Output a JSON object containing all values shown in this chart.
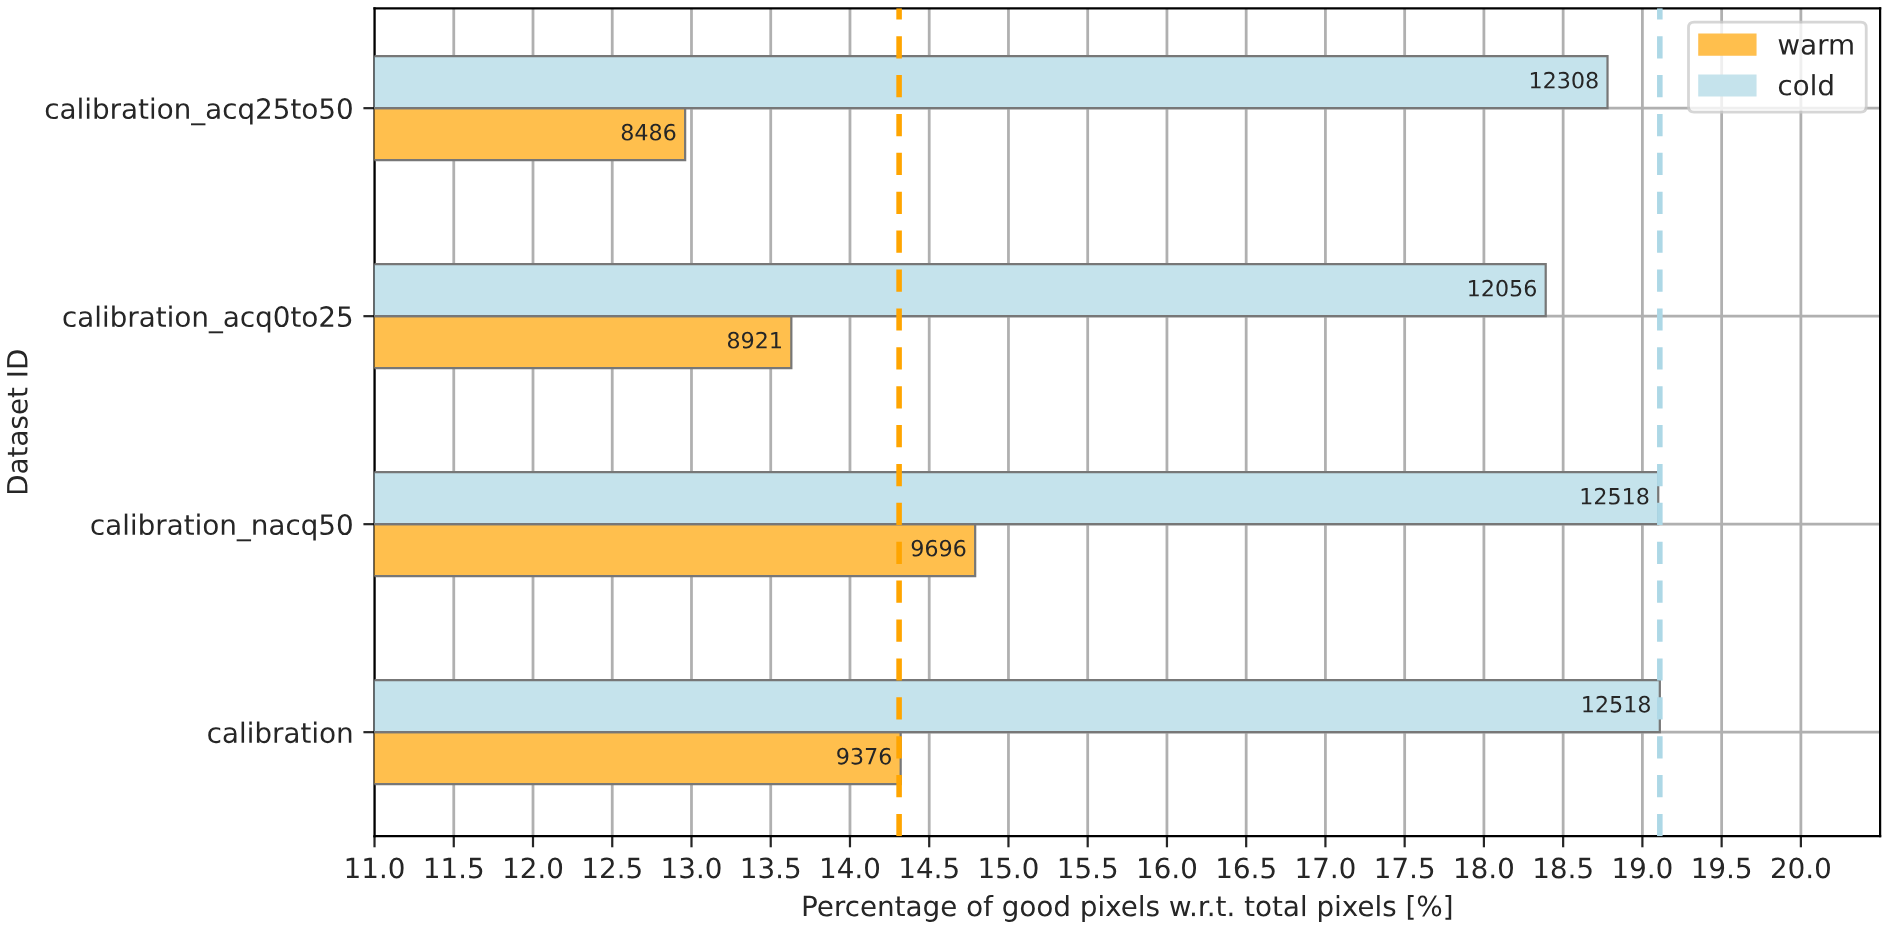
{
  "chart_data": {
    "type": "bar",
    "orientation": "horizontal",
    "xlabel": "Percentage of good pixels w.r.t. total pixels [%]",
    "ylabel": "Dataset ID",
    "categories": [
      "calibration_acq25to50",
      "calibration_acq0to25",
      "calibration_nacq50",
      "calibration"
    ],
    "series": [
      {
        "name": "warm",
        "color": "#ffbf4d",
        "values": [
          12.96,
          13.63,
          14.79,
          14.32
        ]
      },
      {
        "name": "cold",
        "color": "#c5e3ec",
        "values": [
          18.78,
          18.39,
          19.1,
          19.11
        ]
      }
    ],
    "annotations": [
      {
        "text": "8486",
        "x": 12.96,
        "y": "calibration_acq25to50"
      },
      {
        "text": "8921",
        "x": 13.63,
        "y": "calibration_acq0to25"
      },
      {
        "text": "9696",
        "x": 14.79,
        "y": "calibration_nacq50"
      },
      {
        "text": "9376",
        "x": 14.32,
        "y": "calibration"
      },
      {
        "text": "12308",
        "x": 18.78,
        "y": "calibration_acq25to50"
      },
      {
        "text": "12056",
        "x": 18.39,
        "y": "calibration_acq0to25"
      },
      {
        "text": "12518",
        "x": 19.1,
        "y": "calibration_nacq50"
      },
      {
        "text": "12518",
        "x": 19.11,
        "y": "calibration"
      }
    ],
    "xlim": [
      11.0,
      20.5
    ],
    "xticks": [
      {
        "value": 11.0,
        "label": "11.0"
      },
      {
        "value": 11.5,
        "label": "11.5"
      },
      {
        "value": 12.0,
        "label": "12.0"
      },
      {
        "value": 12.5,
        "label": "12.5"
      },
      {
        "value": 13.0,
        "label": "13.0"
      },
      {
        "value": 13.5,
        "label": "13.5"
      },
      {
        "value": 14.0,
        "label": "14.0"
      },
      {
        "value": 14.5,
        "label": "14.5"
      },
      {
        "value": 15.0,
        "label": "15.0"
      },
      {
        "value": 15.5,
        "label": "15.5"
      },
      {
        "value": 16.0,
        "label": "16.0"
      },
      {
        "value": 16.5,
        "label": "16.5"
      },
      {
        "value": 17.0,
        "label": "17.0"
      },
      {
        "value": 17.5,
        "label": "17.5"
      },
      {
        "value": 18.0,
        "label": "18.0"
      },
      {
        "value": 18.5,
        "label": "18.5"
      },
      {
        "value": 19.0,
        "label": "19.0"
      },
      {
        "value": 19.5,
        "label": "19.5"
      },
      {
        "value": 20.0,
        "label": "20.0"
      }
    ],
    "ref_lines": [
      {
        "axis": "x",
        "value": 14.31,
        "color": "#ffa500",
        "line_style": "dashed"
      },
      {
        "axis": "x",
        "value": 19.11,
        "color": "#add8e6",
        "line_style": "dashed"
      }
    ],
    "grid": true,
    "legend": "top right"
  }
}
